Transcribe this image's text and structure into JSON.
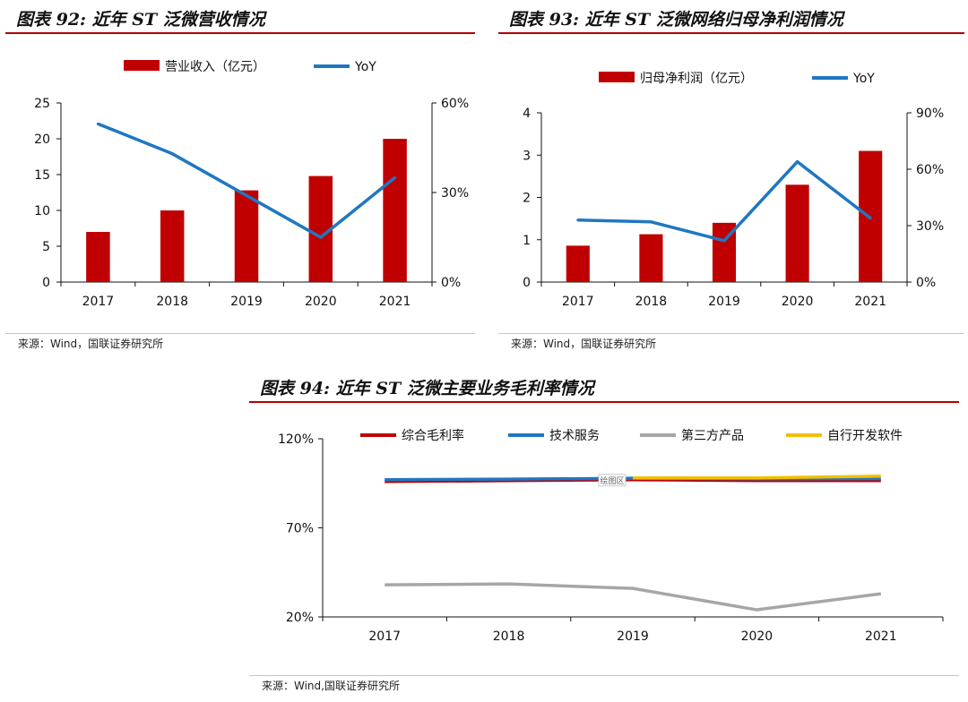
{
  "charts": {
    "c92": {
      "title": "图表 92:  近年 ST 泛微营收情况",
      "source": "来源：Wind，国联证券研究所"
    },
    "c93": {
      "title": "图表 93:  近年 ST 泛微网络归母净利润情况",
      "source": "来源：Wind，国联证券研究所"
    },
    "c94": {
      "title": "图表 94:  近年 ST 泛微主要业务毛利率情况",
      "source": "来源：Wind,国联证券研究所",
      "plot_area_tag": "绘图区"
    }
  },
  "chart_data": [
    {
      "id": "c92",
      "type": "bar",
      "title": "图表 92:  近年 ST 泛微营收情况",
      "categories": [
        "2017",
        "2018",
        "2019",
        "2020",
        "2021"
      ],
      "series": [
        {
          "name": "营业收入（亿元）",
          "type": "bar",
          "axis": "left",
          "color": "#c00000",
          "values": [
            7.0,
            10.0,
            12.8,
            14.8,
            20.0
          ]
        },
        {
          "name": "YoY",
          "type": "line",
          "axis": "right",
          "color": "#1f77c2",
          "values": [
            53,
            43,
            29,
            15,
            35
          ]
        }
      ],
      "ylim_left": [
        0,
        25
      ],
      "yticks_left": [
        "0",
        "5",
        "10",
        "15",
        "20",
        "25"
      ],
      "ylim_right": [
        0,
        60
      ],
      "yticks_right": [
        "0%",
        "30%",
        "60%"
      ],
      "legend": "top-center",
      "grid": false
    },
    {
      "id": "c93",
      "type": "bar",
      "title": "图表 93:  近年 ST 泛微网络归母净利润情况",
      "categories": [
        "2017",
        "2018",
        "2019",
        "2020",
        "2021"
      ],
      "series": [
        {
          "name": "归母净利润（亿元）",
          "type": "bar",
          "axis": "left",
          "color": "#c00000",
          "values": [
            0.86,
            1.13,
            1.4,
            2.3,
            3.1
          ]
        },
        {
          "name": "YoY",
          "type": "line",
          "axis": "right",
          "color": "#1f77c2",
          "values": [
            33,
            32,
            22,
            64,
            34
          ]
        }
      ],
      "ylim_left": [
        0,
        4
      ],
      "yticks_left": [
        "0",
        "1",
        "2",
        "3",
        "4"
      ],
      "ylim_right": [
        0,
        90
      ],
      "yticks_right": [
        "0%",
        "30%",
        "60%",
        "90%"
      ],
      "legend": "top-center",
      "grid": false
    },
    {
      "id": "c94",
      "type": "line",
      "title": "图表 94:  近年 ST 泛微主要业务毛利率情况",
      "categories": [
        "2017",
        "2018",
        "2019",
        "2020",
        "2021"
      ],
      "series": [
        {
          "name": "综合毛利率",
          "color": "#c00000",
          "values": [
            96,
            96.5,
            97,
            96.5,
            96.5
          ]
        },
        {
          "name": "技术服务",
          "color": "#1f77c2",
          "values": [
            97,
            97.3,
            97.8,
            97.5,
            97.6
          ]
        },
        {
          "name": "第三方产品",
          "color": "#a6a6a6",
          "values": [
            38,
            38.5,
            36,
            24,
            33
          ]
        },
        {
          "name": "自行开发软件",
          "color": "#f2c000",
          "values": [
            null,
            null,
            98,
            98,
            99
          ]
        }
      ],
      "ylim": [
        20,
        120
      ],
      "yticks": [
        "20%",
        "70%",
        "120%"
      ],
      "legend": "top",
      "grid": false
    }
  ]
}
